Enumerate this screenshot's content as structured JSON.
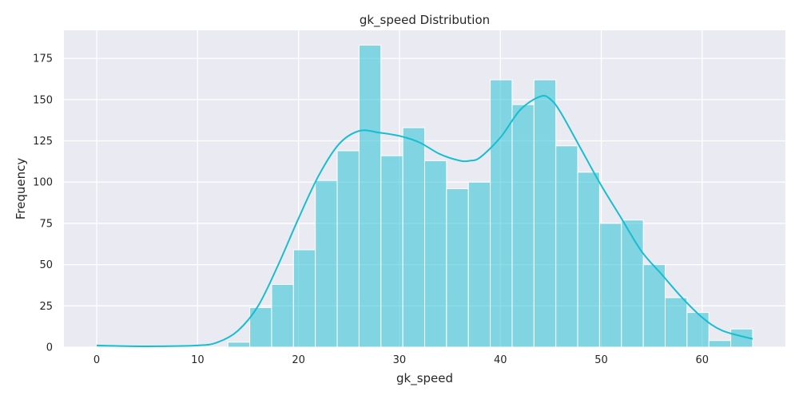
{
  "chart_data": {
    "type": "bar",
    "title": "gk_speed Distribution",
    "xlabel": "gk_speed",
    "ylabel": "Frequency",
    "xlim": [
      -3.25,
      68.25
    ],
    "ylim": [
      0,
      192
    ],
    "xticks": [
      0,
      10,
      20,
      30,
      40,
      50,
      60
    ],
    "yticks": [
      0,
      25,
      50,
      75,
      100,
      125,
      150,
      175
    ],
    "grid": true,
    "bin_edges": [
      0,
      2.1667,
      4.3333,
      6.5,
      8.6667,
      10.8333,
      13,
      15.1667,
      17.3333,
      19.5,
      21.6667,
      23.8333,
      26,
      28.1667,
      30.3333,
      32.5,
      34.6667,
      36.8333,
      39,
      41.1667,
      43.3333,
      45.5,
      47.6667,
      49.8333,
      52,
      54.1667,
      56.3333,
      58.5,
      60.6667,
      62.8333,
      65
    ],
    "counts": [
      1,
      0,
      0,
      0,
      0,
      0,
      3,
      24,
      38,
      59,
      101,
      119,
      183,
      116,
      133,
      113,
      96,
      100,
      162,
      147,
      162,
      122,
      106,
      75,
      77,
      50,
      30,
      21,
      4,
      11
    ],
    "kde": {
      "x": [
        0,
        5,
        10,
        12,
        14,
        16,
        18,
        20,
        22,
        24,
        26,
        28,
        30,
        32,
        34,
        36,
        37,
        38,
        40,
        42,
        44,
        45,
        46,
        48,
        50,
        52,
        54,
        56,
        58,
        60,
        62,
        65
      ],
      "y": [
        1,
        0.5,
        1,
        3,
        10,
        25,
        50,
        78,
        104,
        123,
        131,
        130,
        128,
        124,
        117,
        113,
        113,
        115,
        127,
        144,
        152,
        150,
        142,
        120,
        98,
        78,
        58,
        44,
        30,
        18,
        10,
        5
      ]
    },
    "colors": {
      "bars": "#17becf",
      "kde": "#17becf",
      "plot_background": "#eaeaf2",
      "grid": "#ffffff"
    }
  }
}
